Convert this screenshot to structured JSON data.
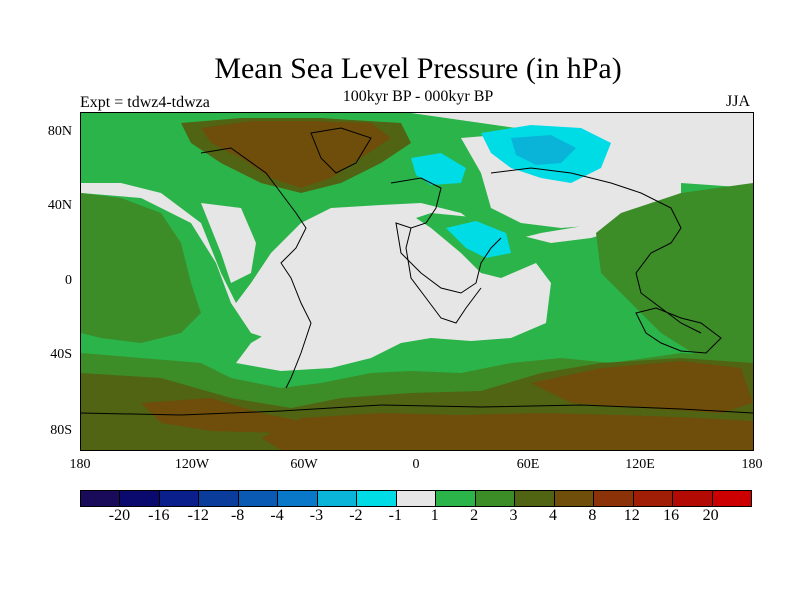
{
  "header": {
    "title": "Mean Sea Level Pressure (in hPa)",
    "subtitle": "100kyr BP - 000kyr BP",
    "expt": "Expt = tdwz4-tdwza",
    "season": "JJA"
  },
  "axes": {
    "y_ticks": [
      "80N",
      "40N",
      "0",
      "40S",
      "80S"
    ],
    "x_ticks": [
      "180",
      "120W",
      "60W",
      "0",
      "60E",
      "120E",
      "180"
    ]
  },
  "legend": {
    "labels": [
      "-20",
      "-16",
      "-12",
      "-8",
      "-4",
      "-3",
      "-2",
      "-1",
      "1",
      "2",
      "3",
      "4",
      "8",
      "12",
      "16",
      "20"
    ],
    "colors": [
      "#1a0a5a",
      "#0a0a6e",
      "#0a1e8c",
      "#0a3c9c",
      "#0a5ab4",
      "#0a78c8",
      "#0ab4d8",
      "#00dce6",
      "#e6e6e6",
      "#2bb44a",
      "#3c8c28",
      "#506414",
      "#6e4e0a",
      "#8c3208",
      "#a01e06",
      "#b40a04",
      "#cc0000"
    ]
  },
  "map": {
    "colors": {
      "neutral": "#e6e6e6",
      "pos1": "#2bb44a",
      "pos2": "#3c8c28",
      "pos3": "#506414",
      "pos4": "#6e4e0a",
      "neg1": "#00dce6",
      "neg2": "#0ab4d8",
      "coast": "#000000"
    }
  }
}
